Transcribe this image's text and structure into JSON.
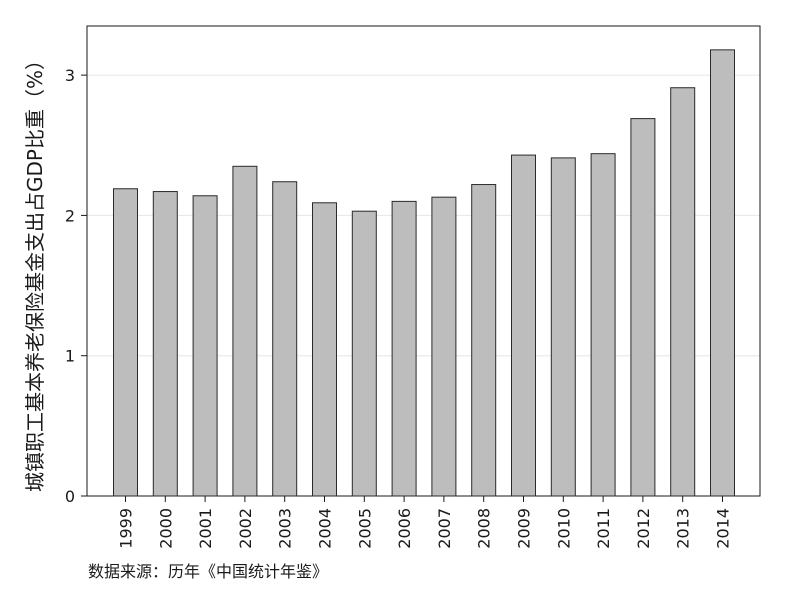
{
  "chart_data": {
    "type": "bar",
    "categories": [
      "1999",
      "2000",
      "2001",
      "2002",
      "2003",
      "2004",
      "2005",
      "2006",
      "2007",
      "2008",
      "2009",
      "2010",
      "2011",
      "2012",
      "2013",
      "2014"
    ],
    "values": [
      2.19,
      2.17,
      2.14,
      2.35,
      2.24,
      2.09,
      2.03,
      2.1,
      2.13,
      2.22,
      2.43,
      2.41,
      2.44,
      2.69,
      2.91,
      3.18
    ],
    "title": "",
    "xlabel": "",
    "ylabel": "城镇职工基本养老保险基金支出占GDP比重（%）",
    "ylim": [
      0,
      3.35
    ],
    "yticks": [
      0,
      1,
      2,
      3
    ],
    "grid": "horizontal",
    "legend": "none",
    "colors": {
      "bar_fill": "#bdbdbd",
      "bar_stroke": "#2a2a2a",
      "grid": "#e6e6e6",
      "axis": "#1a1a1a"
    }
  },
  "source_note": "数据来源：历年《中国统计年鉴》"
}
